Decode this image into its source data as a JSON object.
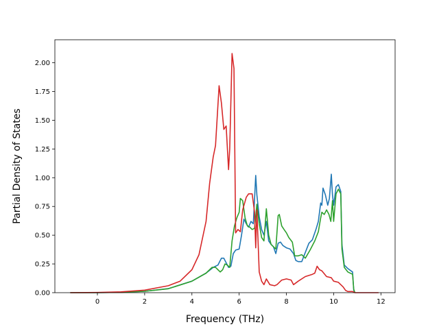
{
  "chart_data": {
    "type": "line",
    "xlabel": "Frequency (THz)",
    "ylabel": "Partial Density of States",
    "xlim": [
      -1.8,
      12.6
    ],
    "ylim": [
      0,
      2.2
    ],
    "xticks": [
      0,
      2,
      4,
      6,
      8,
      10,
      12
    ],
    "yticks": [
      0.0,
      0.25,
      0.5,
      0.75,
      1.0,
      1.25,
      1.5,
      1.75,
      2.0
    ],
    "xtick_labels": [
      "0",
      "2",
      "4",
      "6",
      "8",
      "10",
      "12"
    ],
    "ytick_labels": [
      "0.00",
      "0.25",
      "0.50",
      "0.75",
      "1.00",
      "1.25",
      "1.50",
      "1.75",
      "2.00"
    ],
    "grid": false,
    "series": [
      {
        "color": "#1f77b4",
        "points": [
          [
            -1.15,
            0
          ],
          [
            0,
            0
          ],
          [
            1,
            0.003
          ],
          [
            2,
            0.012
          ],
          [
            3,
            0.035
          ],
          [
            4,
            0.1
          ],
          [
            4.6,
            0.17
          ],
          [
            4.9,
            0.22
          ],
          [
            5.1,
            0.24
          ],
          [
            5.25,
            0.3
          ],
          [
            5.35,
            0.3
          ],
          [
            5.45,
            0.26
          ],
          [
            5.55,
            0.22
          ],
          [
            5.65,
            0.23
          ],
          [
            5.75,
            0.34
          ],
          [
            5.85,
            0.37
          ],
          [
            6.0,
            0.38
          ],
          [
            6.1,
            0.5
          ],
          [
            6.2,
            0.64
          ],
          [
            6.3,
            0.6
          ],
          [
            6.4,
            0.57
          ],
          [
            6.5,
            0.62
          ],
          [
            6.6,
            0.6
          ],
          [
            6.7,
            1.02
          ],
          [
            6.75,
            0.85
          ],
          [
            6.85,
            0.66
          ],
          [
            6.95,
            0.55
          ],
          [
            7.05,
            0.5
          ],
          [
            7.15,
            0.62
          ],
          [
            7.25,
            0.45
          ],
          [
            7.35,
            0.42
          ],
          [
            7.45,
            0.4
          ],
          [
            7.55,
            0.34
          ],
          [
            7.65,
            0.43
          ],
          [
            7.75,
            0.44
          ],
          [
            7.85,
            0.41
          ],
          [
            8.0,
            0.39
          ],
          [
            8.15,
            0.38
          ],
          [
            8.3,
            0.34
          ],
          [
            8.4,
            0.28
          ],
          [
            8.5,
            0.27
          ],
          [
            8.65,
            0.27
          ],
          [
            8.8,
            0.35
          ],
          [
            8.95,
            0.43
          ],
          [
            9.1,
            0.46
          ],
          [
            9.25,
            0.55
          ],
          [
            9.35,
            0.62
          ],
          [
            9.45,
            0.78
          ],
          [
            9.5,
            0.76
          ],
          [
            9.55,
            0.91
          ],
          [
            9.65,
            0.85
          ],
          [
            9.75,
            0.76
          ],
          [
            9.82,
            0.82
          ],
          [
            9.9,
            1.03
          ],
          [
            9.95,
            0.85
          ],
          [
            10.0,
            0.76
          ],
          [
            10.1,
            0.92
          ],
          [
            10.2,
            0.94
          ],
          [
            10.3,
            0.88
          ],
          [
            10.35,
            0.42
          ],
          [
            10.45,
            0.24
          ],
          [
            10.6,
            0.21
          ],
          [
            10.8,
            0.18
          ],
          [
            10.85,
            0.02
          ],
          [
            10.9,
            0
          ]
        ]
      },
      {
        "color": "#2ca02c",
        "points": [
          [
            -1.15,
            0
          ],
          [
            0,
            0
          ],
          [
            1,
            0.003
          ],
          [
            2,
            0.012
          ],
          [
            3,
            0.034
          ],
          [
            4,
            0.1
          ],
          [
            4.6,
            0.17
          ],
          [
            4.85,
            0.22
          ],
          [
            5.0,
            0.22
          ],
          [
            5.1,
            0.2
          ],
          [
            5.2,
            0.18
          ],
          [
            5.3,
            0.2
          ],
          [
            5.4,
            0.25
          ],
          [
            5.5,
            0.24
          ],
          [
            5.6,
            0.22
          ],
          [
            5.7,
            0.45
          ],
          [
            5.8,
            0.58
          ],
          [
            5.9,
            0.65
          ],
          [
            6.0,
            0.7
          ],
          [
            6.05,
            0.82
          ],
          [
            6.15,
            0.8
          ],
          [
            6.25,
            0.65
          ],
          [
            6.35,
            0.58
          ],
          [
            6.45,
            0.57
          ],
          [
            6.55,
            0.55
          ],
          [
            6.65,
            0.56
          ],
          [
            6.75,
            0.77
          ],
          [
            6.85,
            0.6
          ],
          [
            6.95,
            0.48
          ],
          [
            7.05,
            0.45
          ],
          [
            7.15,
            0.73
          ],
          [
            7.25,
            0.5
          ],
          [
            7.35,
            0.42
          ],
          [
            7.45,
            0.4
          ],
          [
            7.55,
            0.38
          ],
          [
            7.65,
            0.67
          ],
          [
            7.7,
            0.68
          ],
          [
            7.8,
            0.58
          ],
          [
            7.9,
            0.55
          ],
          [
            8.0,
            0.52
          ],
          [
            8.1,
            0.48
          ],
          [
            8.25,
            0.44
          ],
          [
            8.35,
            0.32
          ],
          [
            8.5,
            0.32
          ],
          [
            8.65,
            0.33
          ],
          [
            8.8,
            0.3
          ],
          [
            9.0,
            0.37
          ],
          [
            9.2,
            0.45
          ],
          [
            9.35,
            0.53
          ],
          [
            9.45,
            0.65
          ],
          [
            9.5,
            0.7
          ],
          [
            9.6,
            0.68
          ],
          [
            9.7,
            0.72
          ],
          [
            9.8,
            0.68
          ],
          [
            9.88,
            0.62
          ],
          [
            9.95,
            0.8
          ],
          [
            10.0,
            0.62
          ],
          [
            10.1,
            0.86
          ],
          [
            10.2,
            0.9
          ],
          [
            10.3,
            0.86
          ],
          [
            10.35,
            0.38
          ],
          [
            10.45,
            0.22
          ],
          [
            10.6,
            0.18
          ],
          [
            10.8,
            0.16
          ],
          [
            10.85,
            0.03
          ],
          [
            10.9,
            0
          ]
        ]
      },
      {
        "color": "#d62728",
        "points": [
          [
            -1.15,
            0
          ],
          [
            0,
            0.002
          ],
          [
            1,
            0.007
          ],
          [
            2,
            0.022
          ],
          [
            3,
            0.06
          ],
          [
            3.5,
            0.1
          ],
          [
            4.0,
            0.2
          ],
          [
            4.3,
            0.33
          ],
          [
            4.6,
            0.62
          ],
          [
            4.75,
            0.95
          ],
          [
            4.9,
            1.18
          ],
          [
            5.0,
            1.28
          ],
          [
            5.15,
            1.8
          ],
          [
            5.25,
            1.65
          ],
          [
            5.35,
            1.42
          ],
          [
            5.45,
            1.45
          ],
          [
            5.55,
            1.07
          ],
          [
            5.6,
            1.25
          ],
          [
            5.7,
            2.08
          ],
          [
            5.78,
            1.95
          ],
          [
            5.85,
            0.52
          ],
          [
            5.95,
            0.55
          ],
          [
            6.05,
            0.53
          ],
          [
            6.15,
            0.72
          ],
          [
            6.3,
            0.83
          ],
          [
            6.4,
            0.86
          ],
          [
            6.55,
            0.86
          ],
          [
            6.65,
            0.7
          ],
          [
            6.7,
            0.39
          ],
          [
            6.75,
            0.72
          ],
          [
            6.85,
            0.18
          ],
          [
            6.95,
            0.1
          ],
          [
            7.05,
            0.07
          ],
          [
            7.15,
            0.12
          ],
          [
            7.3,
            0.07
          ],
          [
            7.5,
            0.06
          ],
          [
            7.6,
            0.07
          ],
          [
            7.8,
            0.11
          ],
          [
            8.0,
            0.12
          ],
          [
            8.2,
            0.11
          ],
          [
            8.3,
            0.07
          ],
          [
            8.5,
            0.1
          ],
          [
            8.8,
            0.14
          ],
          [
            9.1,
            0.16
          ],
          [
            9.2,
            0.17
          ],
          [
            9.3,
            0.23
          ],
          [
            9.4,
            0.2
          ],
          [
            9.5,
            0.19
          ],
          [
            9.7,
            0.14
          ],
          [
            9.9,
            0.13
          ],
          [
            10.0,
            0.1
          ],
          [
            10.2,
            0.09
          ],
          [
            10.4,
            0.05
          ],
          [
            10.5,
            0.02
          ],
          [
            10.6,
            0.01
          ],
          [
            10.8,
            0.01
          ],
          [
            10.9,
            0
          ],
          [
            11.9,
            0
          ]
        ]
      }
    ]
  }
}
